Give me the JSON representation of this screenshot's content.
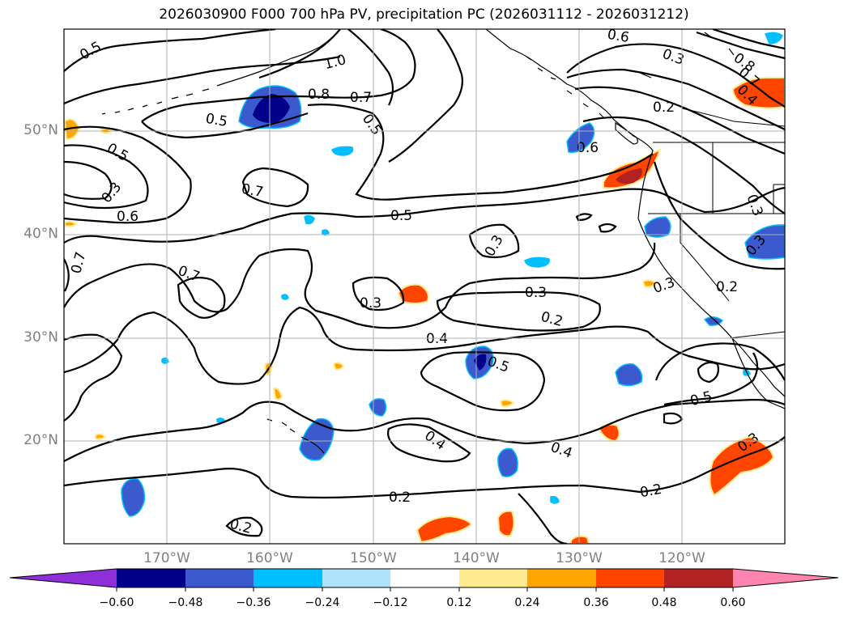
{
  "title": "2026030900 F000 700 hPa PV, precipitation PC (2026031112 - 2026031212)",
  "map": {
    "region": "North-east Pacific and western North America",
    "contour_field": "700 hPa PV",
    "shaded_field": "precipitation PC",
    "lat_ticks": [
      "50°N",
      "40°N",
      "30°N",
      "20°N"
    ],
    "lon_ticks": [
      "170°W",
      "160°W",
      "150°W",
      "140°W",
      "130°W",
      "120°W"
    ],
    "contour_labels": [
      "0.5",
      "1.0",
      "0.8",
      "0.7",
      "0.5",
      "0.5",
      "0.3",
      "0.8",
      "0.7",
      "0.4",
      "0.2",
      "0.5",
      "0.3",
      "0.6",
      "0.7",
      "0.6",
      "0.5",
      "0.3",
      "0.7",
      "0.7",
      "0.3",
      "0.3",
      "0.2",
      "0.4",
      "0.5",
      "0.3",
      "0.3",
      "0.2",
      "0.5",
      "0.4",
      "0.4",
      "0.2",
      "0.2",
      "0.2",
      "0.3",
      "0.6",
      "0.3"
    ]
  },
  "colorbar": {
    "ticks": [
      "−0.60",
      "−0.48",
      "−0.36",
      "−0.24",
      "−0.12",
      "0.12",
      "0.24",
      "0.36",
      "0.48",
      "0.60"
    ],
    "colors": [
      "#8e2fd9",
      "#00008b",
      "#3a5acd",
      "#00bfff",
      "#aee3fb",
      "#ffffff",
      "#ffeb8f",
      "#ffa500",
      "#ff4500",
      "#b22222",
      "#ff85b0"
    ]
  }
}
